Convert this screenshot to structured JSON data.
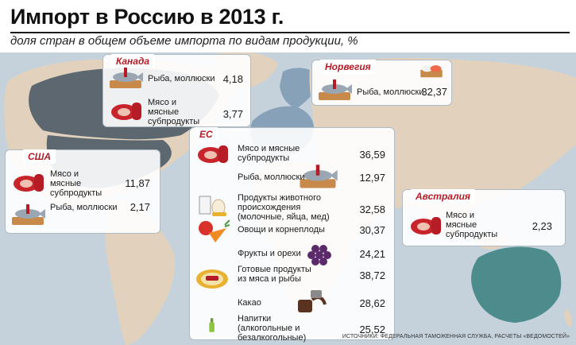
{
  "title": "Импорт в Россию в 2013 г.",
  "subtitle": "доля стран в общем объеме импорта по видам продукции, %",
  "source": "ИСТОЧНИКИ: ФЕДЕРАЛЬНАЯ ТАМОЖЕННАЯ СЛУЖБА, РАСЧЕТЫ «ВЕДОМОСТЕЙ»",
  "colors": {
    "tag": "#b51c25",
    "ocean": "#c5d2dc",
    "land": "#e2d2bd",
    "highlight_dark": "#5c676f",
    "highlight_blue": "#87a2b8",
    "highlight_teal": "#4c8c8c"
  },
  "chart_data": {
    "type": "table",
    "groups": [
      {
        "country": "Канада",
        "items": [
          {
            "label": "Рыба, моллюски",
            "value": "4,18",
            "icon": "fish-icon"
          },
          {
            "label": "Мясо и мясные субпродукты",
            "value": "3,77",
            "icon": "meat-icon"
          }
        ]
      },
      {
        "country": "Норвегия",
        "items": [
          {
            "label": "Рыба, моллюски",
            "value": "32,37",
            "icon": "fish-icon"
          }
        ]
      },
      {
        "country": "США",
        "items": [
          {
            "label": "Мясо и мясные субпродукты",
            "value": "11,87",
            "icon": "meat-icon"
          },
          {
            "label": "Рыба, моллюски",
            "value": "2,17",
            "icon": "fish-icon"
          }
        ]
      },
      {
        "country": "ЕС",
        "items": [
          {
            "label": "Мясо и мясные субпродукты",
            "value": "36,59",
            "icon": "meat-icon"
          },
          {
            "label": "Рыба, моллюски",
            "value": "12,97",
            "icon": "fish-icon"
          },
          {
            "label": "Продукты животного происхождения (молочные, яйца, мед)",
            "value": "32,58",
            "icon": "dairy-icon"
          },
          {
            "label": "Овощи и корнеплоды",
            "value": "30,37",
            "icon": "vegetables-icon"
          },
          {
            "label": "Фрукты и орехи",
            "value": "24,21",
            "icon": "fruit-icon"
          },
          {
            "label": "Готовые продукты из мяса и рыбы",
            "value": "38,72",
            "icon": "prepared-food-icon"
          },
          {
            "label": "Какао",
            "value": "28,62",
            "icon": "cocoa-icon"
          },
          {
            "label": "Напитки (алкогольные и безалкогольные)",
            "value": "25,52",
            "icon": "drinks-icon"
          }
        ]
      },
      {
        "country": "Австралия",
        "items": [
          {
            "label": "Мясо и мясные субпродукты",
            "value": "2,23",
            "icon": "meat-icon"
          }
        ]
      }
    ]
  }
}
